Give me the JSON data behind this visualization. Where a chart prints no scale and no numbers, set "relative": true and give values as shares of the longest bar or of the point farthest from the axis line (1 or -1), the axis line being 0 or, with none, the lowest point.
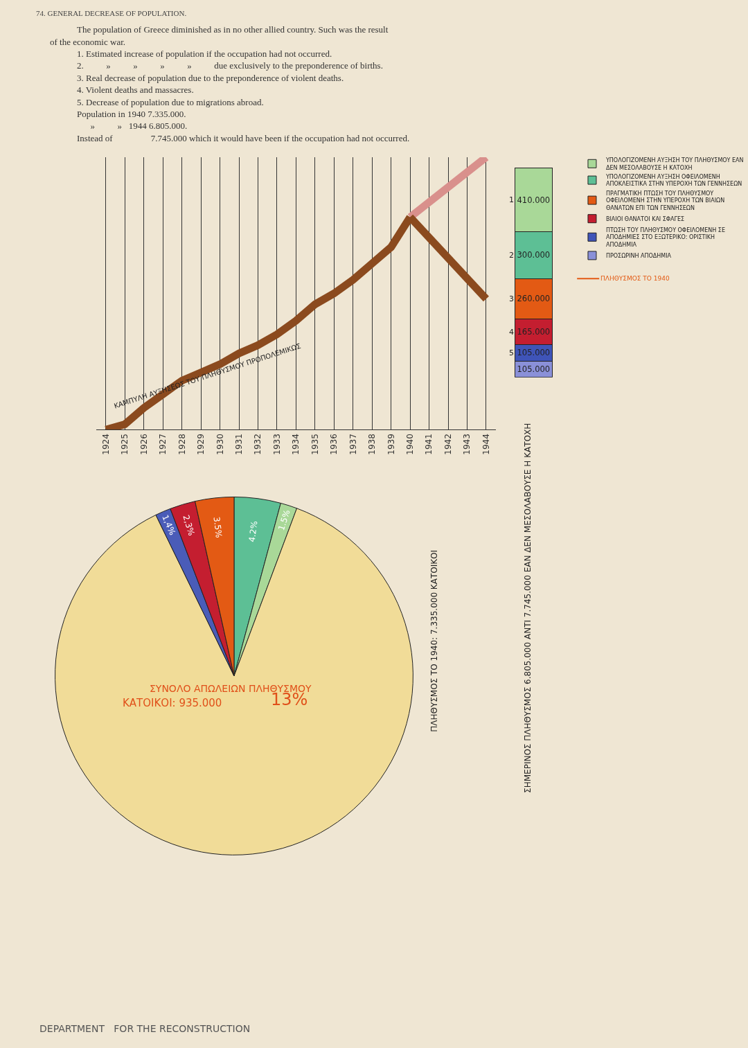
{
  "chart_data": [
    {
      "type": "other",
      "title": "74. GENERAL DECREASE OF POPULATION.",
      "annotations": [
        "The population of Greece diminished as in no other allied country. Such was the result",
        "of the economic war.",
        "1. Estimated increase of population if the occupation had not occurred.",
        "2.          »          »          »          »          due exclusively to the preponderence of births.",
        "3. Real decrease of population due to the preponderence of violent deaths.",
        "4. Violent deaths and massacres.",
        "5. Decrease of population due to migrations abroad.",
        "Population in 1940 7.335.000.",
        "      »          »   1944 6.805.000.",
        "Instead of                 7.745.000 which it would have been if the occupation had not occurred.",
        "DEPARTMENT   FOR THE RECONSTRUCTION"
      ]
    },
    {
      "type": "line",
      "relative": true,
      "grid": "x",
      "marker": "none",
      "line_style": "solid",
      "xlim": [
        1923.5,
        1944.5
      ],
      "xticks": [
        1924,
        1925,
        1926,
        1927,
        1928,
        1929,
        1930,
        1931,
        1932,
        1933,
        1934,
        1935,
        1936,
        1937,
        1938,
        1939,
        1940,
        1941,
        1942,
        1943,
        1944
      ],
      "series": [
        {
          "color": "#8b4a1e",
          "x": [
            1924,
            1925,
            1926,
            1927,
            1928,
            1929,
            1930,
            1931,
            1932,
            1933,
            1934,
            1935,
            1936,
            1937,
            1938,
            1939,
            1940
          ],
          "values": [
            0,
            0.02,
            0.08,
            0.13,
            0.18,
            0.21,
            0.24,
            0.28,
            0.31,
            0.35,
            0.4,
            0.46,
            0.5,
            0.55,
            0.61,
            0.67,
            0.78
          ]
        },
        {
          "color": "#d9908c",
          "x": [
            1940,
            1944
          ],
          "values": [
            0.78,
            1.0
          ]
        },
        {
          "color": "#8b4a1e",
          "x": [
            1940,
            1944
          ],
          "values": [
            0.78,
            0.48
          ]
        }
      ],
      "annotations": [
        "ΚΑΜΠΥΛΗ ΑΥΞΗΣΕΩΣ ΤΟΥ ΠΛΗΘΥΣΜΟΥ ΠΡΟΠΟΛΕΜΙΚΩΣ",
        "ΠΛΗΘΥΣΜΟΣ ΤΟ 1940: 7.335.000 ΚΑΤΟΙΚΟΙ",
        "ΣΗΜΕΡΙΝΟΣ ΠΛΗΘΥΣΜΟΣ 6.805.000 ΑΝΤΙ 7.745.000 ΕΑΝ ΔΕΝ ΜΕΣΟΛΑΒΟΥΣΕ Η ΚΑΤΟΧΗ"
      ]
    },
    {
      "type": "bar",
      "stacked": true,
      "categories": [
        null
      ],
      "tick_labels": false,
      "legend": "right",
      "series": [
        {
          "name": "ΠΡΟΣΩΡΙΝΗ ΑΠΟΔΗΜΙΑ",
          "color": "#8a90d8",
          "values": [
            105000
          ],
          "value_labels": [
            "105.000"
          ]
        },
        {
          "name": "ΠΤΩΣΗ ΤΟΥ ΠΛΗΘΥΣΜΟΥ ΟΦΕΙΛΟΜΕΝΗ ΣΕ ΑΠΟΔΗΜΙΕΣ ΣΤΟ ΕΞΩΤΕΡΙΚΟ: ΟΡΙΣΤΙΚΗ ΑΠΟΔΗΜΙΑ",
          "color": "#3f54b8",
          "values": [
            105000
          ],
          "value_labels": [
            "105.000"
          ]
        },
        {
          "name": "ΒΙΑΙΟΙ ΘΑΝΑΤΟΙ ΚΑΙ ΣΦΑΓΕΣ",
          "color": "#c41e30",
          "values": [
            165000
          ],
          "value_labels": [
            "165.000"
          ]
        },
        {
          "name": "ΠΡΑΓΜΑΤΙΚΗ ΠΤΩΣΗ ΤΟΥ ΠΛΗΘΥΣΜΟΥ ΟΦΕΙΛΟΜΕΝΗ ΣΤΗΝ ΥΠΕΡΟΧΗ ΤΩΝ ΒΙΑΙΩΝ ΘΑΝΑΤΩΝ ΕΠΙ ΤΩΝ ΓΕΝΝΗΣΕΩΝ",
          "color": "#e35a14",
          "values": [
            260000
          ],
          "value_labels": [
            "260.000"
          ]
        },
        {
          "name": "ΥΠΟΛΟΓΙΖΟΜΕΝΗ ΑΥΞΗΣΗ ΟΦΕΙΛΟΜΕΝΗ ΑΠΟΚΛΕΙΣΤΙΚΑ ΣΤΗΝ ΥΠΕΡΟΧΗ ΤΩΝ ΓΕΝΝΗΣΕΩΝ",
          "color": "#5dbf95",
          "values": [
            300000
          ],
          "value_labels": [
            "300.000"
          ]
        },
        {
          "name": "ΥΠΟΛΟΓΙΖΟΜΕΝΗ ΑΥΞΗΣΗ ΤΟΥ ΠΛΗΘΥΣΜΟΥ ΕΑΝ ΔΕΝ ΜΕΣΟΛΑΒΟΥΣΕ Η ΚΑΤΟΧΗ",
          "color": "#a9d898",
          "values": [
            410000
          ],
          "value_labels": [
            "410.000"
          ]
        }
      ],
      "annotations": [
        "5",
        "4",
        "3",
        "2",
        "1",
        "ΠΛΗΘΥΣΜΟΣ ΤΟ 1940"
      ]
    },
    {
      "type": "pie",
      "categories": [
        null,
        null,
        null,
        null,
        null,
        null
      ],
      "values": [
        4.2,
        1.5,
        87.1,
        1.4,
        2.3,
        3.5
      ],
      "colors": [
        "#5dbf95",
        "#a9d898",
        "#f1dc98",
        "#4a5cb8",
        "#c41e30",
        "#e35a14"
      ],
      "value_labels": [
        "4.2%",
        "1.5%",
        null,
        "1,4%",
        "2,3%",
        "3.5%"
      ],
      "annotations": [
        "ΣΥΝΟΛΟ ΑΠΩΛΕΙΩΝ ΠΛΗΘΥΣΜΟΥ",
        "ΚΑΤΟΙΚΟΙ: 935.000",
        "13%"
      ]
    }
  ]
}
